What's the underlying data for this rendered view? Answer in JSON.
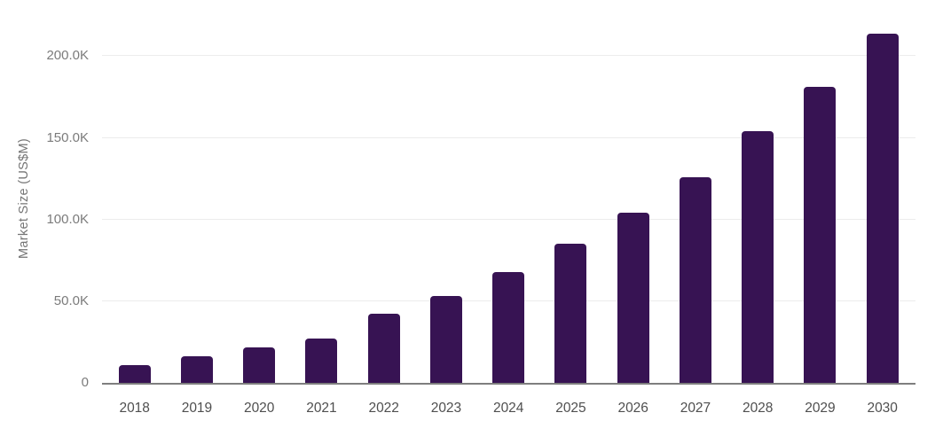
{
  "chart_data": {
    "type": "bar",
    "title": "",
    "xlabel": "",
    "ylabel": "Market Size (US$M)",
    "categories": [
      "2018",
      "2019",
      "2020",
      "2021",
      "2022",
      "2023",
      "2024",
      "2025",
      "2026",
      "2027",
      "2028",
      "2029",
      "2030"
    ],
    "values": [
      10700,
      16300,
      21800,
      27400,
      42200,
      53000,
      67700,
      85300,
      104200,
      126000,
      153900,
      181300,
      213900
    ],
    "values_unit": "US$M",
    "series_name": "Market Size",
    "ylim": [
      0,
      234000
    ],
    "y_ticks": [
      {
        "value": 0,
        "label": "0"
      },
      {
        "value": 50000,
        "label": "50.0K"
      },
      {
        "value": 100000,
        "label": "100.0K"
      },
      {
        "value": 150000,
        "label": "150.0K"
      },
      {
        "value": 200000,
        "label": "200.0K"
      }
    ],
    "grid": "horizontal-only",
    "legend": "none",
    "colors": {
      "bar": "#371353",
      "background": "#ffffff",
      "gridline": "#ececec",
      "axis_line": "#7e7e7e",
      "y_tick_text": "#7b7b7b",
      "x_tick_text": "#4f4f4f",
      "axis_title_text": "#757575"
    }
  }
}
